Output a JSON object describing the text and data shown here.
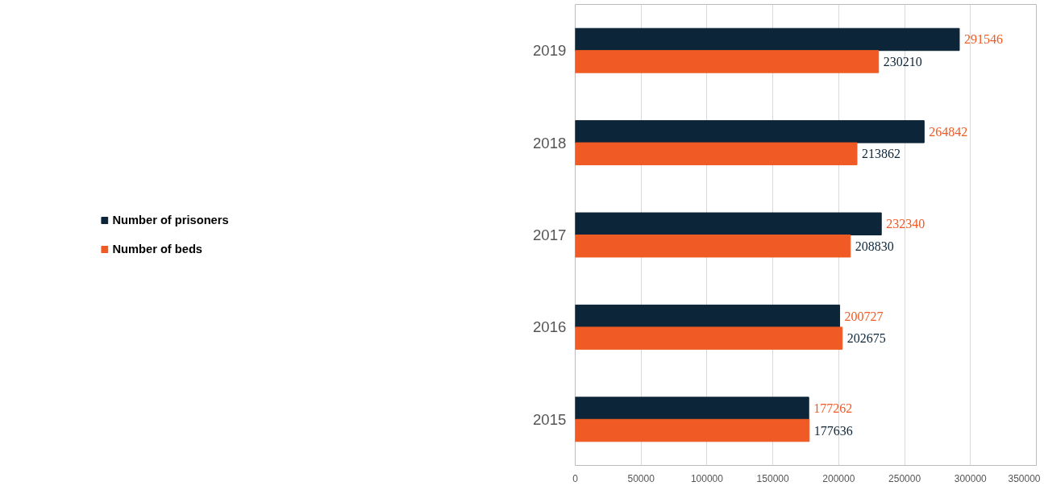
{
  "chart_data": {
    "type": "bar",
    "orientation": "horizontal",
    "categories": [
      "2019",
      "2018",
      "2017",
      "2016",
      "2015"
    ],
    "series": [
      {
        "name": "Number of prisoners",
        "color": "#0d2538",
        "values": [
          291546,
          264842,
          232340,
          200727,
          177262
        ]
      },
      {
        "name": "Number of beds",
        "color": "#f05a24",
        "values": [
          230210,
          213862,
          208830,
          202675,
          177636
        ]
      }
    ],
    "xlim": [
      0,
      350000
    ],
    "xticks": [
      0,
      50000,
      100000,
      150000,
      200000,
      250000,
      300000,
      350000
    ],
    "grid": "x",
    "legend": "left",
    "data_labels": true
  }
}
